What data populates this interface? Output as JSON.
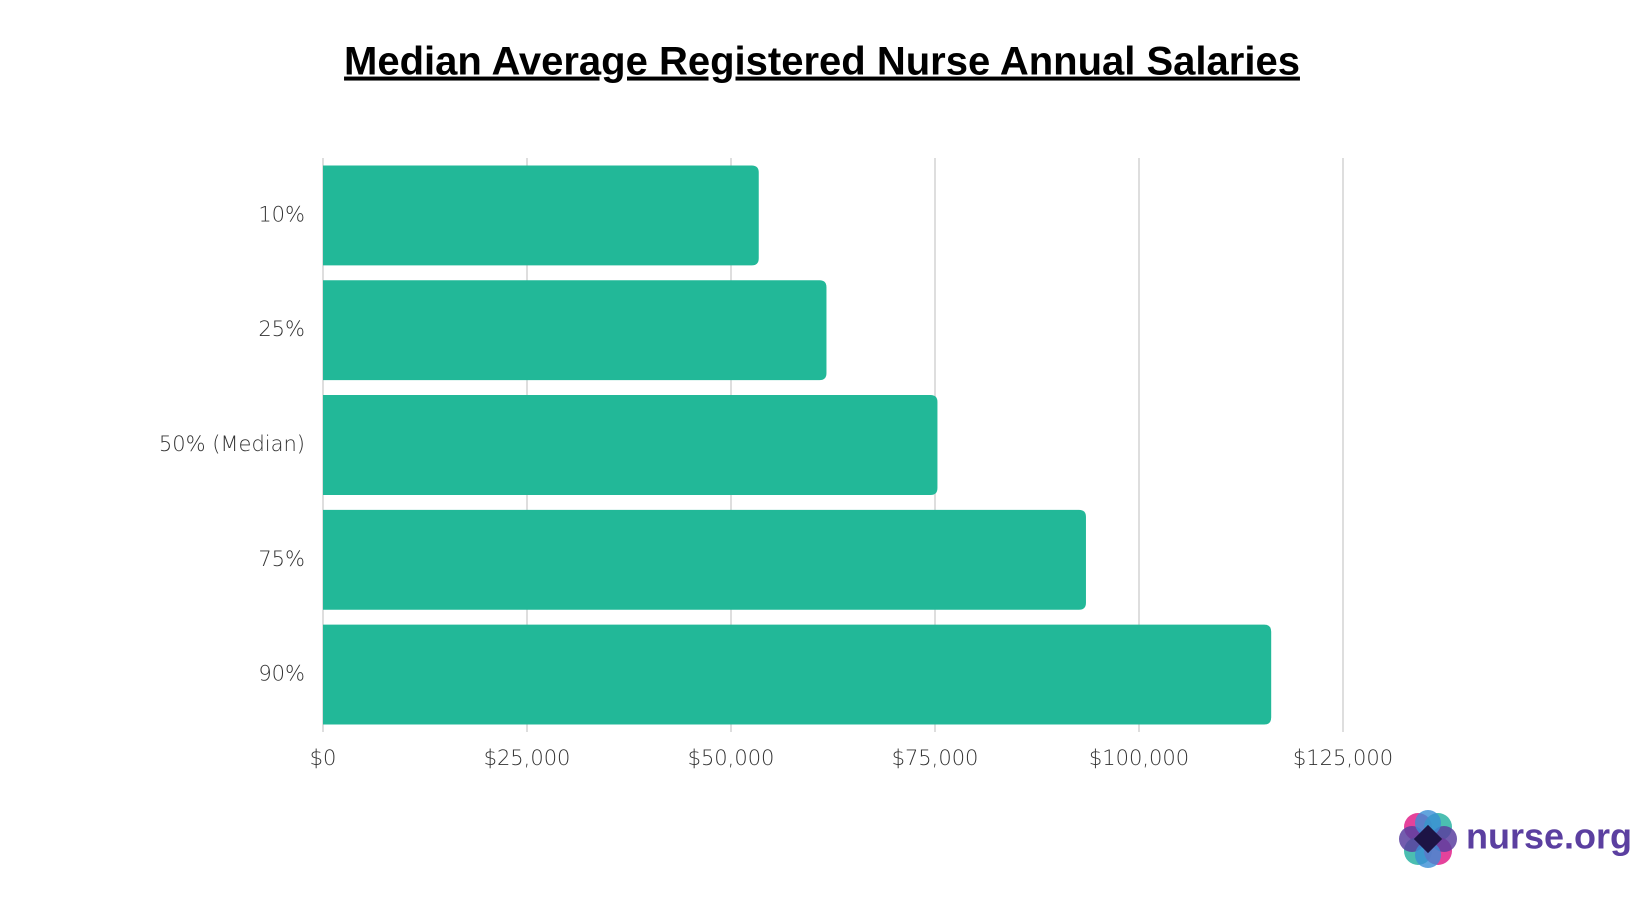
{
  "chart_data": {
    "type": "bar",
    "orientation": "horizontal",
    "title": "Median Average Registered Nurse Annual Salaries",
    "categories": [
      "10%",
      "25%",
      "50% (Median)",
      "75%",
      "90%"
    ],
    "values": [
      53400,
      61700,
      75300,
      93500,
      116200
    ],
    "color": "#22b898",
    "xlim": [
      0,
      125000
    ],
    "xticks": [
      {
        "value": 0,
        "label": "$0"
      },
      {
        "value": 25000,
        "label": "$25,000"
      },
      {
        "value": 50000,
        "label": "$50,000"
      },
      {
        "value": 75000,
        "label": "$75,000"
      },
      {
        "value": 100000,
        "label": "$100,000"
      },
      {
        "value": 125000,
        "label": "$125,000"
      }
    ],
    "grid": true
  },
  "logo": "nurse.org"
}
